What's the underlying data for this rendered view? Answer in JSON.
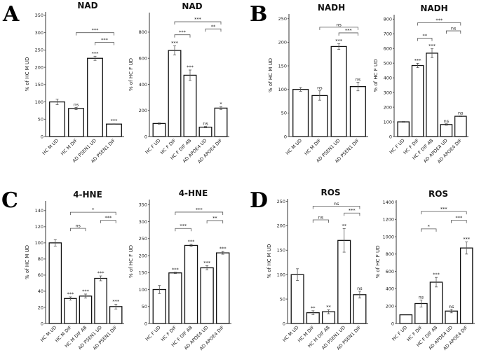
{
  "chart_data": [
    {
      "type": "bar",
      "panel_letter": "A",
      "title": "NAD",
      "ylabel": "% of HC M UD",
      "ylim": [
        0,
        360
      ],
      "yticks": [
        0,
        50,
        100,
        150,
        200,
        250,
        300,
        350
      ],
      "categories": [
        "HC M UD",
        "HC M DIF",
        "AD PSEN1 UD",
        "AD PSEN1 DIF"
      ],
      "values": [
        100,
        81,
        226,
        36
      ],
      "errors": [
        8,
        3,
        6,
        1
      ],
      "significance": [
        "",
        "ns",
        "***",
        "***"
      ],
      "brackets": [
        {
          "from": 1,
          "to": 3,
          "y": 300,
          "label": "***"
        },
        {
          "from": 2,
          "to": 3,
          "y": 272,
          "label": "***"
        }
      ]
    },
    {
      "type": "bar",
      "title": "NAD",
      "ylabel": "% of HC F UD",
      "ylim": [
        0,
        950
      ],
      "yticks": [
        0,
        200,
        400,
        600,
        800
      ],
      "categories": [
        "HC F UD",
        "HC F DIF",
        "HC F DIF AB",
        "AD APOE4 UD",
        "AD APOE4 DIF"
      ],
      "values": [
        100,
        660,
        470,
        72,
        218
      ],
      "errors": [
        5,
        35,
        40,
        5,
        10
      ],
      "significance": [
        "",
        "***",
        "***",
        "ns",
        "*"
      ],
      "brackets": [
        {
          "from": 1,
          "to": 4,
          "y": 880,
          "label": "***"
        },
        {
          "from": 1,
          "to": 2,
          "y": 780,
          "label": "***"
        },
        {
          "from": 3,
          "to": 4,
          "y": 825,
          "label": "**"
        }
      ]
    },
    {
      "type": "bar",
      "panel_letter": "B",
      "title": "NADH",
      "ylabel": "% of HC M UD",
      "ylim": [
        0,
        260
      ],
      "yticks": [
        0,
        50,
        100,
        150,
        200,
        250
      ],
      "categories": [
        "HC M UD",
        "HC M DIF",
        "AD PSEN1 UD",
        "AD PSEN1 DIF"
      ],
      "values": [
        100,
        87,
        191,
        106
      ],
      "errors": [
        4,
        10,
        6,
        9
      ],
      "significance": [
        "",
        "ns",
        "***",
        "ns"
      ],
      "brackets": [
        {
          "from": 1,
          "to": 3,
          "y": 232,
          "label": "ns"
        },
        {
          "from": 2,
          "to": 3,
          "y": 220,
          "label": "***"
        }
      ]
    },
    {
      "type": "bar",
      "title": "NADH",
      "ylabel": "% of HC F UD",
      "ylim": [
        0,
        830
      ],
      "yticks": [
        0,
        100,
        200,
        300,
        400,
        500,
        600,
        700,
        800
      ],
      "categories": [
        "HC F UD",
        "HC F DIF",
        "HC F DIF AB",
        "AD APOE4 UD",
        "AD APOE4 DIF"
      ],
      "values": [
        100,
        484,
        568,
        82,
        138
      ],
      "errors": [
        3,
        15,
        30,
        5,
        3
      ],
      "significance": [
        "",
        "***",
        "***",
        "ns",
        "ns"
      ],
      "brackets": [
        {
          "from": 1,
          "to": 4,
          "y": 775,
          "label": "***"
        },
        {
          "from": 1,
          "to": 2,
          "y": 670,
          "label": "**"
        },
        {
          "from": 3,
          "to": 4,
          "y": 720,
          "label": "ns"
        }
      ]
    },
    {
      "type": "bar",
      "panel_letter": "C",
      "title": "4-HNE",
      "ylabel": "% of HC M UD",
      "ylim": [
        0,
        152
      ],
      "yticks": [
        0,
        20,
        40,
        60,
        80,
        100,
        120,
        140
      ],
      "categories": [
        "HC M UD",
        "HC M DIF",
        "HC M DIF AB",
        "AD PSEN1 UD",
        "AD PSEN1 DIF"
      ],
      "values": [
        100,
        31,
        34,
        56,
        21
      ],
      "errors": [
        4,
        2,
        2.5,
        3,
        3
      ],
      "significance": [
        "",
        "***",
        "***",
        "***",
        "***"
      ],
      "brackets": [
        {
          "from": 1,
          "to": 4,
          "y": 138,
          "label": "*"
        },
        {
          "from": 1,
          "to": 2,
          "y": 118,
          "label": "ns"
        },
        {
          "from": 3,
          "to": 4,
          "y": 128,
          "label": "***"
        }
      ]
    },
    {
      "type": "bar",
      "title": "4-HNE",
      "ylabel": "% of HC F UD",
      "ylim": [
        0,
        365
      ],
      "yticks": [
        0,
        50,
        100,
        150,
        200,
        250,
        300,
        350
      ],
      "categories": [
        "HC F UD",
        "HC F DIF",
        "HC F DIF AB",
        "AD APOE4 UD",
        "AD APOE4 DIF"
      ],
      "values": [
        100,
        149,
        230,
        164,
        208
      ],
      "errors": [
        12,
        2,
        3,
        6,
        4
      ],
      "significance": [
        "",
        "***",
        "***",
        "***",
        "***"
      ],
      "brackets": [
        {
          "from": 1,
          "to": 4,
          "y": 328,
          "label": "***"
        },
        {
          "from": 1,
          "to": 2,
          "y": 280,
          "label": "***"
        },
        {
          "from": 3,
          "to": 4,
          "y": 303,
          "label": "**"
        }
      ]
    },
    {
      "type": "bar",
      "panel_letter": "D",
      "title": "ROS",
      "ylabel": "% of HC M UD",
      "ylim": [
        0,
        255
      ],
      "yticks": [
        0,
        50,
        100,
        150,
        200,
        250
      ],
      "categories": [
        "HC M UD",
        "HC M DIF",
        "HC M DIF AB",
        "AD PSEN1 UD",
        "AD PSEN1 DIF"
      ],
      "values": [
        100,
        22,
        24,
        170,
        59
      ],
      "errors": [
        12,
        4,
        4,
        24,
        7
      ],
      "significance": [
        "",
        "**",
        "**",
        "**",
        "ns"
      ],
      "brackets": [
        {
          "from": 1,
          "to": 4,
          "y": 240,
          "label": "ns"
        },
        {
          "from": 1,
          "to": 2,
          "y": 212,
          "label": "ns"
        },
        {
          "from": 3,
          "to": 4,
          "y": 226,
          "label": "***"
        }
      ]
    },
    {
      "type": "bar",
      "title": "ROS",
      "ylabel": "% of HC F UD",
      "ylim": [
        0,
        1420
      ],
      "yticks": [
        0,
        200,
        400,
        600,
        800,
        1000,
        1200,
        1400
      ],
      "categories": [
        "HC F UD",
        "HC F DIF",
        "HC F DIF AB",
        "AD APOE4 UD",
        "AD APOE4 DIF"
      ],
      "values": [
        100,
        230,
        476,
        143,
        870
      ],
      "errors": [
        0,
        40,
        55,
        20,
        70
      ],
      "significance": [
        "",
        "ns",
        "***",
        "ns",
        "***"
      ],
      "brackets": [
        {
          "from": 1,
          "to": 4,
          "y": 1290,
          "label": "***"
        },
        {
          "from": 1,
          "to": 2,
          "y": 1090,
          "label": "*"
        },
        {
          "from": 3,
          "to": 4,
          "y": 1190,
          "label": "***"
        }
      ]
    }
  ]
}
